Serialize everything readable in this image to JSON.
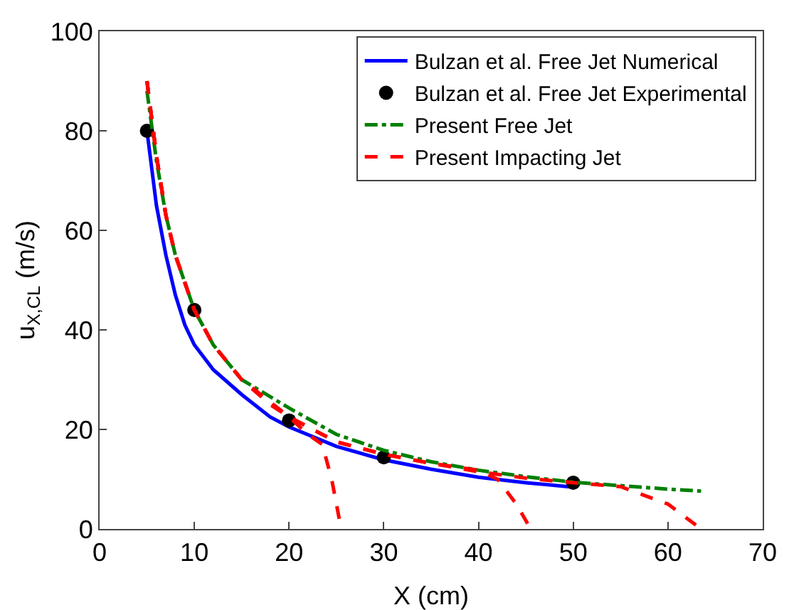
{
  "chart_data": {
    "type": "line",
    "xlabel": "X (cm)",
    "ylabel": "u$_{X,CL}$ (m/s)",
    "xlim": [
      0,
      70
    ],
    "xticks": [
      0,
      10,
      20,
      30,
      40,
      50,
      60,
      70
    ],
    "ylim": [
      0,
      100
    ],
    "yticks": [
      0,
      20,
      40,
      60,
      80,
      100
    ],
    "grid": false,
    "legend": "top right",
    "series": [
      {
        "name": "Bulzan et al. Free Jet Numerical",
        "line_style": "solid",
        "color": "#0000ff",
        "x": [
          5,
          6,
          7,
          8,
          9,
          10,
          12,
          15,
          18,
          20,
          25,
          30,
          35,
          40,
          45,
          50
        ],
        "values": [
          80,
          65,
          55,
          47,
          41,
          37,
          32,
          27,
          22.5,
          20.5,
          16.6,
          13.9,
          12,
          10.4,
          9.3,
          8.4
        ]
      },
      {
        "name": "Bulzan et al. Free Jet Experimental",
        "type": "scatter",
        "marker": "circle",
        "color": "#000000",
        "x": [
          5,
          10,
          20,
          30,
          50
        ],
        "values": [
          80,
          44,
          21.8,
          14.4,
          9.3
        ]
      },
      {
        "name": "Present Free Jet",
        "line_style": "dashdot",
        "color": "#008000",
        "x": [
          5,
          6,
          7,
          8,
          10,
          12,
          15,
          20,
          25,
          30,
          35,
          40,
          45,
          50,
          55,
          60,
          63.5
        ],
        "values": [
          88,
          74,
          63,
          55,
          44,
          37,
          30,
          24.3,
          19,
          15.8,
          13.5,
          11.8,
          10.5,
          9.4,
          8.7,
          8,
          7.6
        ]
      },
      {
        "name": "Present Impacting Jet",
        "line_style": "dashed",
        "color": "#ff0000",
        "x": [
          5,
          6,
          7,
          8,
          10,
          12,
          15,
          18,
          20,
          22,
          23.5,
          24.5,
          25.5
        ],
        "values": [
          90,
          75,
          63,
          55,
          44,
          37,
          30,
          25,
          22.5,
          19,
          17,
          10,
          0
        ]
      },
      {
        "line_style": "dashed",
        "color": "#ff0000",
        "x": [
          5,
          6,
          7,
          8,
          10,
          12,
          15,
          20,
          25,
          30,
          35,
          40,
          42,
          44,
          45.5
        ],
        "values": [
          90,
          75,
          63,
          55,
          44,
          37,
          30,
          22.5,
          17.5,
          15,
          13.2,
          11.8,
          10,
          5,
          0
        ]
      },
      {
        "line_style": "dashed",
        "color": "#ff0000",
        "x": [
          5,
          6,
          7,
          8,
          10,
          12,
          15,
          20,
          25,
          30,
          35,
          40,
          45,
          50,
          55,
          60,
          63.5
        ],
        "values": [
          90,
          75,
          63,
          55,
          44,
          37,
          30,
          22.5,
          17.5,
          15,
          13.2,
          11.5,
          10.2,
          9.3,
          8.5,
          5,
          0
        ]
      }
    ]
  }
}
